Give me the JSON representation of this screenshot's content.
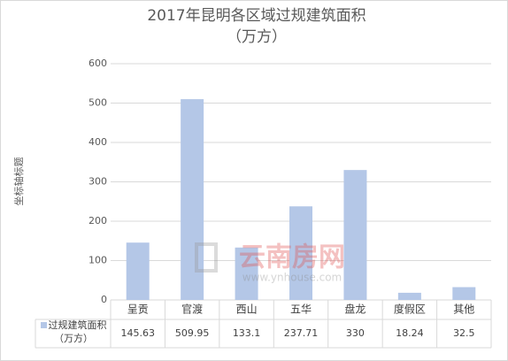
{
  "chart_data": {
    "type": "bar",
    "title": "2017年昆明各区域过规建筑面积",
    "subtitle": "（万方）",
    "y_label": "坐标轴标题",
    "categories": [
      "呈贡",
      "官渡",
      "西山",
      "五华",
      "盘龙",
      "度假区",
      "其他"
    ],
    "series": [
      {
        "name": "过规建筑面积（万方）",
        "color": "#b4c7e7",
        "values": [
          145.63,
          509.95,
          133.1,
          237.71,
          330,
          18.24,
          32.5
        ]
      }
    ],
    "ylim": [
      0,
      600
    ],
    "yticks": [
      0,
      100,
      200,
      300,
      400,
      500,
      600
    ],
    "grid": true,
    "watermark": {
      "text": "云南房网",
      "url": "www.ynhouse.com"
    }
  }
}
